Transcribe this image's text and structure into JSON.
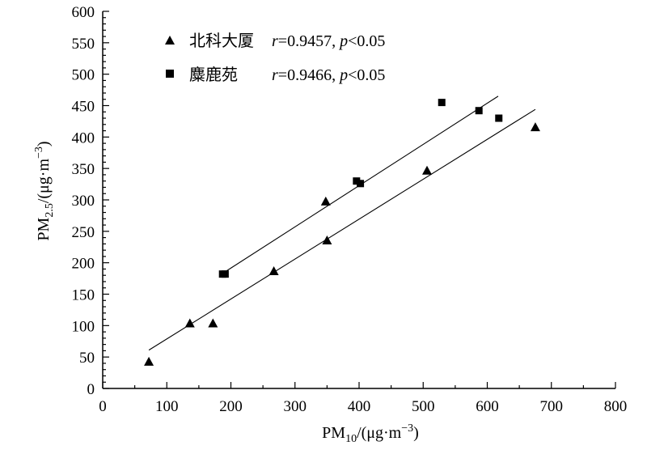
{
  "chart_data": {
    "type": "scatter",
    "xlabel": {
      "base": "PM",
      "sub": "10",
      "unit": "/(μg·m",
      "sup": "−3",
      "close": ")"
    },
    "ylabel": {
      "base": "PM",
      "sub": "2.5",
      "unit": "/(μg·m",
      "sup": "−3",
      "close": ")"
    },
    "xlim": [
      0,
      800
    ],
    "ylim": [
      0,
      600
    ],
    "xticks": [
      0,
      100,
      200,
      300,
      400,
      500,
      600,
      700,
      800
    ],
    "yticks": [
      0,
      50,
      100,
      150,
      200,
      250,
      300,
      350,
      400,
      450,
      500,
      550,
      600
    ],
    "legend_position": "top-left",
    "series": [
      {
        "name": "北科大厦",
        "marker": "triangle",
        "stat_r_symbol": "r",
        "stat_r_value": "=0.9457, ",
        "stat_p_symbol": "p",
        "stat_p_value": "<0.05",
        "points": [
          [
            72,
            42
          ],
          [
            136,
            103
          ],
          [
            172,
            103
          ],
          [
            267,
            186
          ],
          [
            348,
            297
          ],
          [
            350,
            235
          ],
          [
            506,
            346
          ],
          [
            675,
            415
          ]
        ],
        "trendline": {
          "x": [
            72,
            675
          ],
          "y": [
            61,
            444
          ]
        }
      },
      {
        "name": "麋鹿苑",
        "marker": "square",
        "stat_r_symbol": "r",
        "stat_r_value": "=0.9466, ",
        "stat_p_symbol": "p",
        "stat_p_value": "<0.05",
        "points": [
          [
            187,
            182
          ],
          [
            191,
            182
          ],
          [
            396,
            330
          ],
          [
            402,
            326
          ],
          [
            529,
            455
          ],
          [
            587,
            442
          ],
          [
            618,
            430
          ]
        ],
        "trendline": {
          "x": [
            187,
            617
          ],
          "y": [
            183,
            465
          ]
        }
      }
    ]
  }
}
